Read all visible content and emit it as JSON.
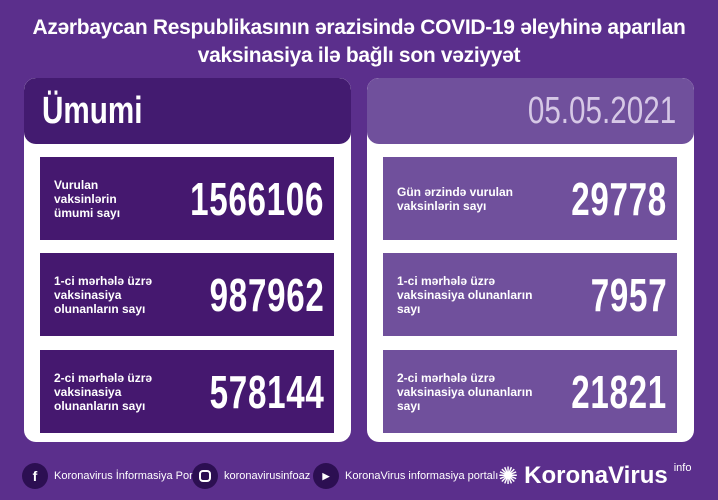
{
  "title": {
    "line1": "Azərbaycan Respublikasının ərazisində COVID-19 əleyhinə aparılan",
    "line2": "vaksinasiya ilə bağlı son vəziyyət"
  },
  "left": {
    "header": "Ümumi",
    "items": [
      {
        "label": "Vurulan vaksinlərin ümumi sayı",
        "value": "1566106"
      },
      {
        "label": "1-ci mərhələ üzrə vaksinasiya olunanların sayı",
        "value": "987962"
      },
      {
        "label": "2-ci mərhələ üzrə vaksinasiya olunanların sayı",
        "value": "578144"
      }
    ]
  },
  "right": {
    "header": "05.05.2021",
    "items": [
      {
        "label": "Gün ərzində vurulan vaksinlərin sayı",
        "value": "29778"
      },
      {
        "label": "1-ci mərhələ üzrə vaksinasiya olunanların sayı",
        "value": "7957"
      },
      {
        "label": "2-ci mərhələ üzrə vaksinasiya olunanların sayı",
        "value": "21821"
      }
    ]
  },
  "footer": {
    "facebook": "Koronavirus İnformasiya Portalı",
    "instagram": "koronavirusinfoaz",
    "youtube": "KoronaVirus informasiya portalı",
    "logo": "KoronaVirus",
    "logo_sup": "info"
  },
  "colors": {
    "background": "#5b2f8c",
    "dark_panel": "#45186f",
    "light_panel": "#70509c"
  }
}
